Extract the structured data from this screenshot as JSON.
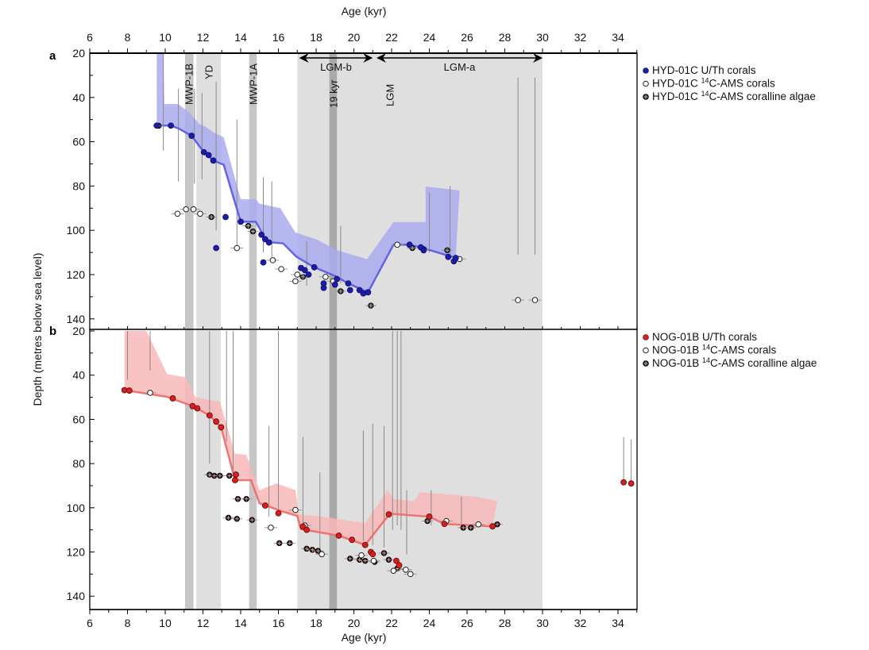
{
  "chart_data": [
    {
      "type": "scatter",
      "panel_label": "a",
      "xlabel": "Age (kyr)",
      "ylabel": "Depth (metres below sea level)",
      "xlim": [
        6,
        35
      ],
      "ylim": [
        20,
        145
      ],
      "y_inverted": true,
      "xticks": [
        6,
        8,
        10,
        12,
        14,
        16,
        18,
        20,
        22,
        24,
        26,
        28,
        30,
        32,
        34
      ],
      "yticks": [
        20,
        40,
        60,
        80,
        100,
        120,
        140
      ],
      "legend_position": "right",
      "legend": [
        {
          "pre": "HYD-01C U/Th corals",
          "sup": "",
          "post": "",
          "marker": "filled"
        },
        {
          "pre": "HYD-01C ",
          "sup": "14",
          "post": "C-AMS corals",
          "marker": "open"
        },
        {
          "pre": "HYD-01C ",
          "sup": "14",
          "post": "C-AMS coralline algae",
          "marker": "algae"
        }
      ],
      "colors": {
        "point": "#1c1ca8",
        "line": "#5858e0",
        "envelope": "#aaaaee"
      },
      "sea_level_curve": [
        [
          9.55,
          52.7
        ],
        [
          10.3,
          52.7
        ],
        [
          10.7,
          54
        ],
        [
          11.4,
          57.3
        ],
        [
          12.05,
          64.7
        ],
        [
          12.55,
          68.5
        ],
        [
          13.1,
          70.4
        ],
        [
          14.0,
          96.1
        ],
        [
          14.8,
          96.1
        ],
        [
          15.4,
          105.3
        ],
        [
          16.25,
          105.9
        ],
        [
          16.95,
          111.9
        ],
        [
          17.9,
          116.7
        ],
        [
          19.05,
          120.8
        ],
        [
          19.7,
          124
        ],
        [
          20.75,
          128
        ],
        [
          22.1,
          106.5
        ],
        [
          22.95,
          106.5
        ],
        [
          23.55,
          107.7
        ],
        [
          25.4,
          112.5
        ]
      ],
      "envelope_upper": [
        [
          9.55,
          20
        ],
        [
          9.9,
          20
        ],
        [
          9.95,
          43
        ],
        [
          10.7,
          43
        ],
        [
          11.3,
          47
        ],
        [
          11.8,
          52
        ],
        [
          12.1,
          53
        ],
        [
          12.6,
          56
        ],
        [
          13.1,
          58
        ],
        [
          14.0,
          86
        ],
        [
          14.8,
          86
        ],
        [
          15.0,
          88
        ],
        [
          16.1,
          90
        ],
        [
          16.9,
          101
        ],
        [
          18.0,
          104
        ],
        [
          19.1,
          109
        ],
        [
          20.7,
          113
        ],
        [
          22.1,
          96.3
        ],
        [
          23.8,
          96.3
        ],
        [
          23.8,
          80.2
        ],
        [
          25.6,
          82
        ]
      ],
      "ut_corals": [
        [
          9.55,
          52.7
        ],
        [
          10.3,
          52.7
        ],
        [
          11.4,
          57.3
        ],
        [
          12.05,
          64.7
        ],
        [
          12.3,
          66
        ],
        [
          12.55,
          68.5
        ],
        [
          13.2,
          94
        ],
        [
          12.7,
          108
        ],
        [
          14.0,
          96.1
        ],
        [
          15.1,
          102
        ],
        [
          15.3,
          104
        ],
        [
          15.5,
          105.5
        ],
        [
          15.2,
          114.5
        ],
        [
          17.4,
          118
        ],
        [
          17.6,
          120
        ],
        [
          17.2,
          117
        ],
        [
          17.9,
          116.7
        ],
        [
          18.4,
          126
        ],
        [
          18.4,
          124
        ],
        [
          19.0,
          124.5
        ],
        [
          19.1,
          122
        ],
        [
          19.8,
          127
        ],
        [
          19.7,
          124
        ],
        [
          20.3,
          127
        ],
        [
          20.5,
          128.5
        ],
        [
          20.75,
          128
        ],
        [
          22.95,
          106.5
        ],
        [
          23.55,
          107.7
        ],
        [
          23.7,
          109
        ],
        [
          25.0,
          112
        ],
        [
          25.3,
          114
        ],
        [
          25.4,
          112.5
        ]
      ],
      "ams_corals": [
        [
          10.65,
          92.5
        ],
        [
          11.1,
          90.5
        ],
        [
          11.5,
          90.5
        ],
        [
          11.85,
          92.5
        ],
        [
          13.8,
          108
        ],
        [
          15.7,
          113.5
        ],
        [
          16.15,
          117.5
        ],
        [
          16.9,
          123
        ],
        [
          17.0,
          120
        ],
        [
          18.5,
          121
        ],
        [
          18.9,
          123
        ],
        [
          22.3,
          106.5
        ],
        [
          25.6,
          113
        ],
        [
          28.7,
          131.5
        ],
        [
          29.6,
          131.5
        ]
      ],
      "algae": [
        [
          9.65,
          52.8
        ],
        [
          12.45,
          94
        ],
        [
          14.4,
          98
        ],
        [
          14.65,
          100.5
        ],
        [
          17.3,
          121
        ],
        [
          19.3,
          127.5
        ],
        [
          20.9,
          134
        ],
        [
          23.1,
          108
        ],
        [
          23.7,
          108.5
        ],
        [
          24.95,
          109
        ]
      ],
      "error_bars": [
        [
          9.9,
          20,
          64
        ],
        [
          10.7,
          36,
          78
        ],
        [
          11.55,
          36,
          79
        ],
        [
          11.95,
          38,
          77
        ],
        [
          12.7,
          33,
          100
        ],
        [
          13.8,
          50,
          108
        ],
        [
          15.2,
          76,
          110
        ],
        [
          15.65,
          78,
          112
        ],
        [
          17.5,
          105,
          125
        ],
        [
          19.3,
          98,
          124
        ],
        [
          24.0,
          83,
          110
        ],
        [
          25.1,
          80,
          112
        ],
        [
          28.7,
          31,
          111
        ],
        [
          29.6,
          31,
          111
        ]
      ]
    },
    {
      "type": "scatter",
      "panel_label": "b",
      "xlabel": "Age (kyr)",
      "ylabel": "Depth (metres below sea level)",
      "xlim": [
        6,
        35
      ],
      "ylim": [
        20,
        146
      ],
      "y_inverted": true,
      "xticks": [
        6,
        8,
        10,
        12,
        14,
        16,
        18,
        20,
        22,
        24,
        26,
        28,
        30,
        32,
        34
      ],
      "yticks": [
        20,
        40,
        60,
        80,
        100,
        120,
        140
      ],
      "legend_position": "right",
      "legend": [
        {
          "pre": "NOG-01B U/Th corals",
          "sup": "",
          "post": "",
          "marker": "filled"
        },
        {
          "pre": "NOG-01B ",
          "sup": "14",
          "post": "C-AMS corals",
          "marker": "open"
        },
        {
          "pre": "NOG-01B ",
          "sup": "14",
          "post": "C-AMS coralline algae",
          "marker": "algae"
        }
      ],
      "colors": {
        "point": "#d81f1f",
        "line": "#f06868",
        "envelope": "#f8b8b8"
      },
      "sea_level_curve": [
        [
          7.84,
          46.8
        ],
        [
          10.1,
          49.8
        ],
        [
          11.45,
          54
        ],
        [
          12.35,
          58.2
        ],
        [
          12.96,
          63.6
        ],
        [
          13.7,
          87.5
        ],
        [
          14.55,
          87.5
        ],
        [
          15.0,
          98
        ],
        [
          16.3,
          101.9
        ],
        [
          17.0,
          103.7
        ],
        [
          17.2,
          109.7
        ],
        [
          19.2,
          112.6
        ],
        [
          20.6,
          116.8
        ],
        [
          21.9,
          102.7
        ],
        [
          24.0,
          104
        ],
        [
          24.8,
          107.3
        ],
        [
          27.35,
          108.4
        ]
      ],
      "envelope_upper": [
        [
          7.84,
          20
        ],
        [
          9.0,
          20
        ],
        [
          10.1,
          39.5
        ],
        [
          11.1,
          41
        ],
        [
          11.6,
          50
        ],
        [
          12.9,
          52
        ],
        [
          13.7,
          75.5
        ],
        [
          14.3,
          76
        ],
        [
          15.0,
          92
        ],
        [
          15.9,
          89
        ],
        [
          16.9,
          92
        ],
        [
          17.1,
          103
        ],
        [
          18.3,
          104
        ],
        [
          20.6,
          107
        ],
        [
          21.8,
          92
        ],
        [
          22.1,
          96
        ],
        [
          23.2,
          97
        ],
        [
          23.5,
          93
        ],
        [
          26.5,
          95
        ],
        [
          27.6,
          97
        ]
      ],
      "ut_corals": [
        [
          7.84,
          46.8
        ],
        [
          8.1,
          47
        ],
        [
          10.4,
          50.5
        ],
        [
          11.45,
          54
        ],
        [
          11.7,
          55
        ],
        [
          12.35,
          58.2
        ],
        [
          12.7,
          61
        ],
        [
          12.96,
          63.6
        ],
        [
          13.75,
          85
        ],
        [
          13.7,
          87.5
        ],
        [
          15.3,
          99
        ],
        [
          16.0,
          102.5
        ],
        [
          17.3,
          108.5
        ],
        [
          17.5,
          110
        ],
        [
          19.2,
          112.6
        ],
        [
          19.9,
          114.5
        ],
        [
          20.6,
          116.8
        ],
        [
          20.9,
          120
        ],
        [
          21.0,
          121
        ],
        [
          22.25,
          124
        ],
        [
          22.4,
          126
        ],
        [
          21.85,
          103
        ],
        [
          24.0,
          104
        ],
        [
          24.8,
          107.3
        ],
        [
          27.35,
          108.4
        ],
        [
          34.3,
          88.5
        ],
        [
          34.7,
          89
        ]
      ],
      "ams_corals": [
        [
          9.2,
          48
        ],
        [
          15.6,
          109
        ],
        [
          16.9,
          101
        ],
        [
          17.4,
          108
        ],
        [
          18.3,
          121
        ],
        [
          20.4,
          121.5
        ],
        [
          21.05,
          124
        ],
        [
          22.1,
          128.5
        ],
        [
          22.75,
          128
        ],
        [
          23.0,
          130
        ],
        [
          24.9,
          106
        ],
        [
          26.6,
          107.5
        ]
      ],
      "algae": [
        [
          12.35,
          85
        ],
        [
          12.6,
          85.5
        ],
        [
          12.9,
          85.5
        ],
        [
          13.4,
          85.5
        ],
        [
          13.85,
          96
        ],
        [
          14.3,
          96
        ],
        [
          13.35,
          104.5
        ],
        [
          13.8,
          105
        ],
        [
          14.6,
          105.5
        ],
        [
          16.05,
          116
        ],
        [
          16.6,
          116
        ],
        [
          17.5,
          118.5
        ],
        [
          17.8,
          119
        ],
        [
          18.1,
          119.5
        ],
        [
          19.8,
          123
        ],
        [
          20.3,
          123.5
        ],
        [
          20.6,
          124
        ],
        [
          21.1,
          124.5
        ],
        [
          21.6,
          120.5
        ],
        [
          21.85,
          123.5
        ],
        [
          22.3,
          127.5
        ],
        [
          23.9,
          106
        ],
        [
          25.8,
          109
        ],
        [
          26.2,
          109
        ],
        [
          27.6,
          107.5
        ]
      ],
      "error_bars": [
        [
          8.0,
          20,
          42
        ],
        [
          9.2,
          20,
          38
        ],
        [
          12.35,
          20,
          80
        ],
        [
          13.25,
          20,
          70
        ],
        [
          13.6,
          20,
          85
        ],
        [
          16.0,
          20,
          101
        ],
        [
          15.5,
          63,
          104
        ],
        [
          17.3,
          68,
          108
        ],
        [
          18.2,
          84,
          120
        ],
        [
          20.5,
          65,
          115
        ],
        [
          21.0,
          62,
          117
        ],
        [
          21.6,
          63,
          118
        ],
        [
          22.05,
          20,
          110
        ],
        [
          22.3,
          20,
          108
        ],
        [
          22.5,
          20,
          110
        ],
        [
          22.8,
          92,
          121
        ],
        [
          24.1,
          92,
          108
        ],
        [
          25.7,
          95,
          110
        ],
        [
          34.3,
          68,
          89
        ],
        [
          34.7,
          69,
          89
        ]
      ]
    }
  ],
  "periods": [
    {
      "label": "MWP-1B",
      "range": [
        11.05,
        11.5
      ],
      "tone": "mid"
    },
    {
      "label": "YD",
      "range": [
        11.65,
        12.95
      ],
      "tone": "light"
    },
    {
      "label": "MWP-1A",
      "range": [
        14.45,
        14.85
      ],
      "tone": "mid"
    },
    {
      "label": "",
      "range": [
        17.0,
        30.0
      ],
      "tone": "light"
    },
    {
      "label": "19 kyr",
      "range": [
        18.7,
        19.1
      ],
      "tone": "dark"
    }
  ],
  "annotations": {
    "lgm": "LGM",
    "lgm_b": {
      "label": "LGM-b",
      "range": [
        17.1,
        21.0
      ]
    },
    "lgm_a": {
      "label": "LGM-a",
      "range": [
        21.2,
        30.0
      ]
    }
  },
  "labels": {
    "top_axis": "Age (kyr)",
    "bottom_axis": "Age (kyr)",
    "y_axis": "Depth (metres below sea level)",
    "panel_a": "a",
    "panel_b": "b"
  }
}
